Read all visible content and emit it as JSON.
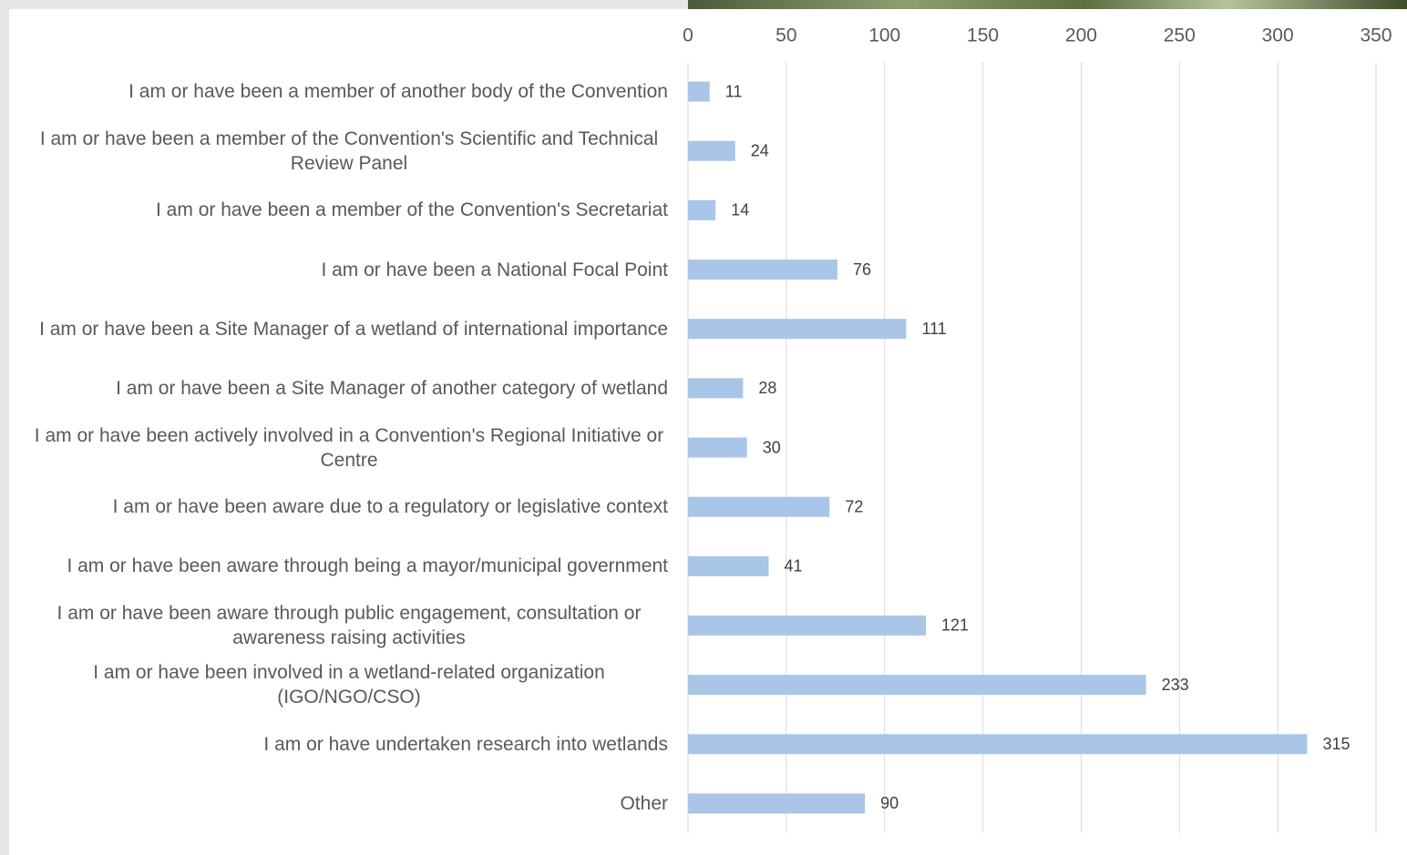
{
  "chart_data": {
    "type": "bar",
    "orientation": "horizontal",
    "categories": [
      "I am or have been a member of another body of the Convention",
      "I am or have been a member of the Convention's Scientific and Technical Review Panel",
      "I am or have been a member of the Convention's Secretariat",
      "I am or have been a National Focal Point",
      "I am or have been a Site Manager of a wetland of international importance",
      "I am or have been a Site Manager of another category of wetland",
      "I am or have been actively involved in a Convention's Regional Initiative or Centre",
      "I am or have been aware due to a regulatory or legislative context",
      "I am or have been aware through being a mayor/municipal government",
      "I am or have been aware through public engagement, consultation or awareness raising activities",
      "I am or have been involved in a wetland-related organization (IGO/NGO/CSO)",
      "I am or have undertaken research into wetlands",
      "Other"
    ],
    "values": [
      11,
      24,
      14,
      76,
      111,
      28,
      30,
      72,
      41,
      121,
      233,
      315,
      90
    ],
    "color": "#a9c6e8",
    "xlim": [
      0,
      350
    ],
    "xticks": [
      0,
      50,
      100,
      150,
      200,
      250,
      300,
      350
    ],
    "grid": true
  }
}
